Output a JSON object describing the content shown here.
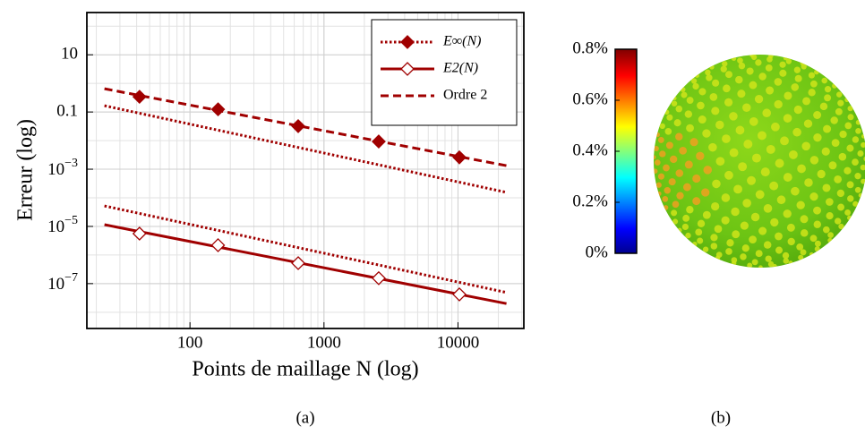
{
  "chart_data": {
    "type": "line",
    "x_label": "Points de maillage N (log)",
    "y_label": "Erreur (log)",
    "caption": "(a)",
    "xscale": "log",
    "yscale": "log",
    "grid": true,
    "minor_grid": true,
    "xlim": [
      17,
      31000
    ],
    "ylim": [
      2.7e-09,
      300
    ],
    "xticks": [
      100,
      1000,
      10000
    ],
    "yticks": [
      10,
      0.1,
      {
        "value": 0.001,
        "label": "10",
        "exponent": "−3"
      },
      {
        "value": 1e-05,
        "label": "10",
        "exponent": "−5"
      },
      {
        "value": 1e-07,
        "label": "10",
        "exponent": "−7"
      }
    ],
    "legend": "upper right",
    "series": [
      {
        "name": "E∞(N)",
        "color": "#a00000",
        "style": "dotted",
        "marker": "diamond-filled",
        "x": [
          42,
          162,
          642,
          2562,
          10242
        ],
        "values": [
          0.34,
          0.124,
          0.032,
          0.0093,
          0.0026
        ]
      },
      {
        "name": "E2(N)",
        "color": "#a00000",
        "style": "solid",
        "marker": "diamond-open",
        "x": [
          42,
          162,
          642,
          2562,
          10242
        ],
        "values": [
          5.6e-06,
          2.2e-06,
          5.2e-07,
          1.55e-07,
          4.2e-08
        ]
      },
      {
        "name": "Ordre 2",
        "color": "#a00000",
        "style": "dashed",
        "marker": "none"
      }
    ],
    "lines": [
      {
        "color": "#a00000",
        "style": "dashed",
        "x": [
          23,
          23000
        ],
        "values": [
          0.65,
          0.00133
        ]
      },
      {
        "color": "#a00000",
        "style": "dotted",
        "x": [
          23,
          23000
        ],
        "values": [
          0.166,
          0.000155
        ]
      },
      {
        "color": "#a00000",
        "style": "dotted",
        "x": [
          23,
          23000
        ],
        "values": [
          5.2e-05,
          4.9e-08
        ]
      },
      {
        "color": "#a00000",
        "style": "solid",
        "x": [
          23,
          23000
        ],
        "values": [
          1.15e-05,
          2e-08
        ]
      }
    ]
  },
  "figure_b": {
    "caption": "(b)",
    "colorbar": {
      "colormap": "jet",
      "lim": [
        0,
        0.8
      ],
      "ticks": [
        {
          "value": 0,
          "label": "0%"
        },
        {
          "value": 0.2,
          "label": "0.2%"
        },
        {
          "value": 0.4,
          "label": "0.4%"
        },
        {
          "value": 0.6,
          "label": "0.6%"
        },
        {
          "value": 0.8,
          "label": "0.8%"
        }
      ]
    }
  }
}
